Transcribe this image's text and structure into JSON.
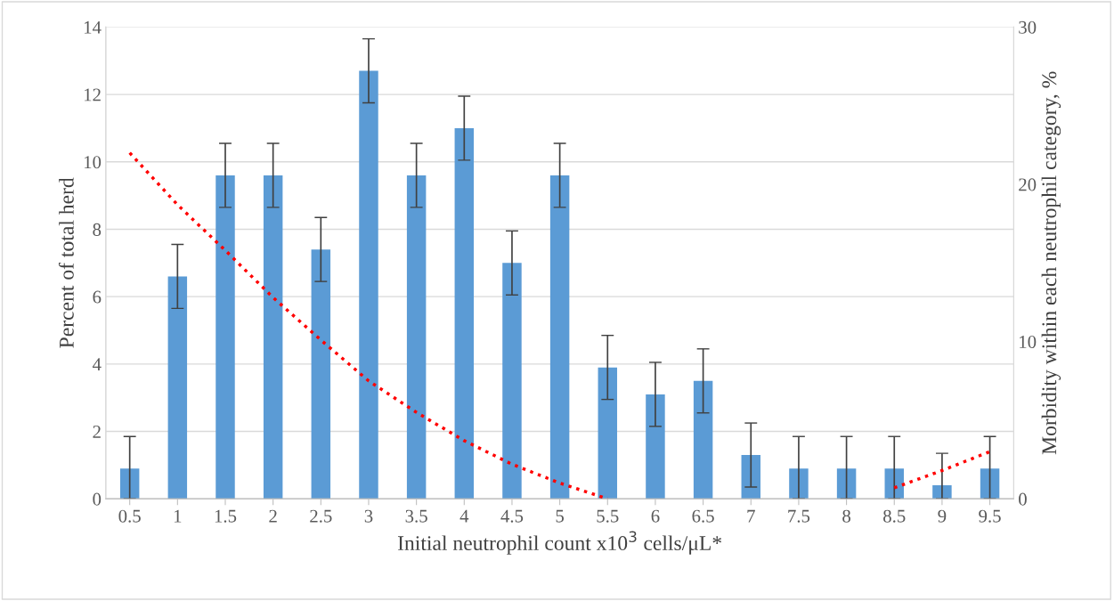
{
  "chart_data": {
    "type": "bar",
    "xlabel": "Initial neutrophil count x10$^{3}$ cells/μL*",
    "ylabel": "Percent of total herd",
    "y2label": "Morbidity within each neutrophil category, %",
    "categories": [
      "0.5",
      "1",
      "1.5",
      "2",
      "2.5",
      "3",
      "3.5",
      "4",
      "4.5",
      "5",
      "5.5",
      "6",
      "6.5",
      "7",
      "7.5",
      "8",
      "8.5",
      "9",
      "9.5"
    ],
    "series": [
      {
        "color": "#5b9bd5",
        "values": [
          0.9,
          6.6,
          9.6,
          9.6,
          7.4,
          12.7,
          9.6,
          11.0,
          7.0,
          9.6,
          3.9,
          3.1,
          3.5,
          1.3,
          0.9,
          0.9,
          0.9,
          0.4,
          0.9
        ],
        "errors": [
          [
            0,
            1.85
          ],
          0.95,
          0.95,
          0.95,
          0.95,
          0.95,
          0.95,
          0.95,
          0.95,
          0.95,
          0.95,
          0.95,
          0.95,
          0.95,
          [
            0,
            1.85
          ],
          [
            0,
            1.85
          ],
          [
            0,
            1.85
          ],
          [
            0,
            1.35
          ],
          [
            0,
            1.85
          ]
        ]
      },
      {
        "type": "line",
        "axis": "y2",
        "color": "#ff0000",
        "line_style": "dotted",
        "marker": "none",
        "values": [
          22.0,
          18.7,
          15.8,
          12.8,
          10.1,
          7.5,
          5.5,
          3.7,
          2.2,
          1.0,
          0.0,
          null,
          null,
          null,
          null,
          null,
          0.7,
          1.8,
          3.0
        ]
      }
    ],
    "ylim": [
      0,
      14
    ],
    "yticks": [
      0,
      2,
      4,
      6,
      8,
      10,
      12,
      14
    ],
    "y2lim": [
      0,
      30
    ],
    "y2ticks": [
      0,
      10,
      20,
      30
    ],
    "grid": "y",
    "legend": false
  }
}
